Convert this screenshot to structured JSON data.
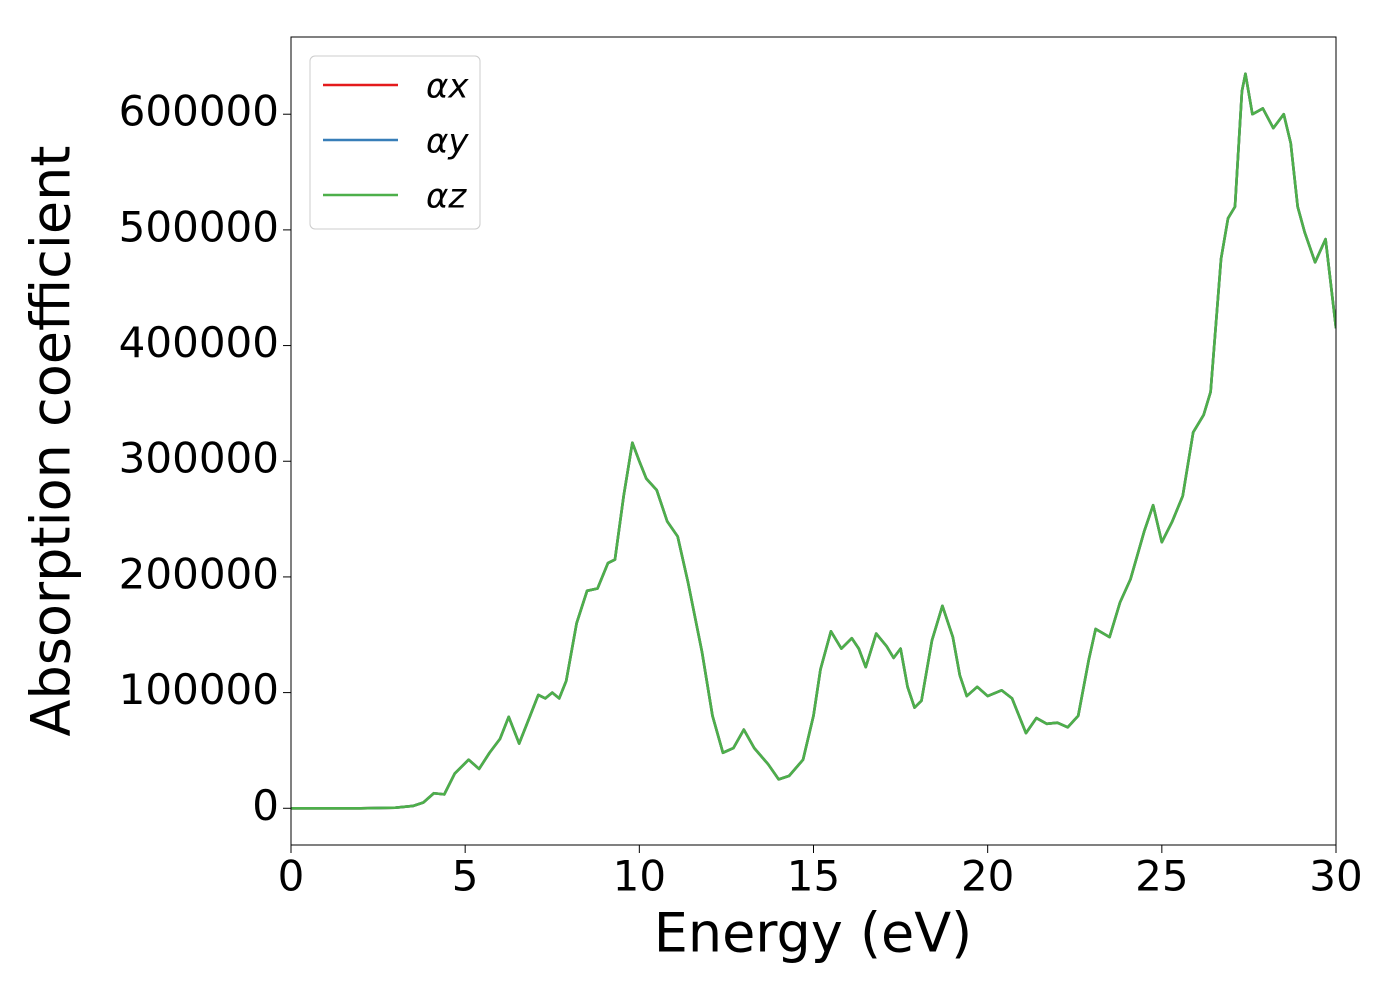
{
  "chart_data": {
    "type": "line",
    "xlabel": "Energy (eV)",
    "ylabel": "Absorption coefficient",
    "x": [
      0,
      1,
      2,
      3,
      3.5,
      3.8,
      4.1,
      4.4,
      4.7,
      5.1,
      5.4,
      5.7,
      6.0,
      6.25,
      6.55,
      6.8,
      7.1,
      7.3,
      7.5,
      7.7,
      7.9,
      8.2,
      8.5,
      8.8,
      9.1,
      9.3,
      9.55,
      9.8,
      10.0,
      10.2,
      10.5,
      10.8,
      11.1,
      11.4,
      11.8,
      12.1,
      12.4,
      12.7,
      13.0,
      13.3,
      13.7,
      14.0,
      14.3,
      14.7,
      15.0,
      15.2,
      15.5,
      15.8,
      16.1,
      16.3,
      16.5,
      16.8,
      17.1,
      17.3,
      17.5,
      17.7,
      17.9,
      18.1,
      18.4,
      18.7,
      19.0,
      19.2,
      19.4,
      19.7,
      20.0,
      20.4,
      20.7,
      21.1,
      21.4,
      21.7,
      22.0,
      22.3,
      22.6,
      22.9,
      23.1,
      23.5,
      23.8,
      24.1,
      24.5,
      24.75,
      25.0,
      25.3,
      25.6,
      25.9,
      26.2,
      26.4,
      26.7,
      26.9,
      27.1,
      27.3,
      27.4,
      27.6,
      27.9,
      28.2,
      28.5,
      28.7,
      28.9,
      29.1,
      29.4,
      29.7,
      30.0
    ],
    "series": [
      {
        "name": "αx",
        "color": "#e41a1c",
        "values": [
          0,
          0,
          0,
          500,
          2000,
          5000,
          13000,
          12000,
          30000,
          42000,
          34000,
          48000,
          60000,
          79000,
          56000,
          75000,
          98000,
          95000,
          100000,
          95000,
          110000,
          160000,
          188000,
          190000,
          212000,
          215000,
          270000,
          316000,
          300000,
          285000,
          275000,
          248000,
          235000,
          195000,
          135000,
          80000,
          48000,
          52000,
          68000,
          52000,
          38000,
          25000,
          28000,
          42000,
          80000,
          120000,
          153000,
          138000,
          147000,
          138000,
          122000,
          151000,
          140000,
          130000,
          138000,
          105000,
          87000,
          93000,
          145000,
          175000,
          148000,
          115000,
          97000,
          105000,
          97000,
          102000,
          95000,
          65000,
          78000,
          73000,
          74000,
          70000,
          80000,
          128000,
          155000,
          148000,
          178000,
          198000,
          240000,
          262000,
          230000,
          248000,
          270000,
          325000,
          340000,
          360000,
          475000,
          510000,
          520000,
          620000,
          635000,
          600000,
          605000,
          588000,
          600000,
          575000,
          520000,
          498000,
          472000,
          492000,
          415000
        ]
      },
      {
        "name": "αy",
        "color": "#377eb8",
        "values": [
          0,
          0,
          0,
          500,
          2000,
          5000,
          13000,
          12000,
          30000,
          42000,
          34000,
          48000,
          60000,
          79000,
          56000,
          75000,
          98000,
          95000,
          100000,
          95000,
          110000,
          160000,
          188000,
          190000,
          212000,
          215000,
          270000,
          316000,
          300000,
          285000,
          275000,
          248000,
          235000,
          195000,
          135000,
          80000,
          48000,
          52000,
          68000,
          52000,
          38000,
          25000,
          28000,
          42000,
          80000,
          120000,
          153000,
          138000,
          147000,
          138000,
          122000,
          151000,
          140000,
          130000,
          138000,
          105000,
          87000,
          93000,
          145000,
          175000,
          148000,
          115000,
          97000,
          105000,
          97000,
          102000,
          95000,
          65000,
          78000,
          73000,
          74000,
          70000,
          80000,
          128000,
          155000,
          148000,
          178000,
          198000,
          240000,
          262000,
          230000,
          248000,
          270000,
          325000,
          340000,
          360000,
          475000,
          510000,
          520000,
          620000,
          635000,
          600000,
          605000,
          588000,
          600000,
          575000,
          520000,
          498000,
          472000,
          492000,
          415000
        ]
      },
      {
        "name": "αz",
        "color": "#4daf4a",
        "values": [
          0,
          0,
          0,
          500,
          2000,
          5000,
          13000,
          12000,
          30000,
          42000,
          34000,
          48000,
          60000,
          79000,
          56000,
          75000,
          98000,
          95000,
          100000,
          95000,
          110000,
          160000,
          188000,
          190000,
          212000,
          215000,
          270000,
          316000,
          300000,
          285000,
          275000,
          248000,
          235000,
          195000,
          135000,
          80000,
          48000,
          52000,
          68000,
          52000,
          38000,
          25000,
          28000,
          42000,
          80000,
          120000,
          153000,
          138000,
          147000,
          138000,
          122000,
          151000,
          140000,
          130000,
          138000,
          105000,
          87000,
          93000,
          145000,
          175000,
          148000,
          115000,
          97000,
          105000,
          97000,
          102000,
          95000,
          65000,
          78000,
          73000,
          74000,
          70000,
          80000,
          128000,
          155000,
          148000,
          178000,
          198000,
          240000,
          262000,
          230000,
          248000,
          270000,
          325000,
          340000,
          360000,
          475000,
          510000,
          520000,
          620000,
          635000,
          600000,
          605000,
          588000,
          600000,
          575000,
          520000,
          498000,
          472000,
          492000,
          415000
        ]
      }
    ],
    "xlim": [
      0,
      30
    ],
    "xticks": [
      0,
      5,
      10,
      15,
      20,
      25,
      30
    ],
    "ylim": [
      -31750,
      666750
    ],
    "yticks": [
      0,
      100000,
      200000,
      300000,
      400000,
      500000,
      600000
    ],
    "legend": "upper left",
    "grid": false
  }
}
